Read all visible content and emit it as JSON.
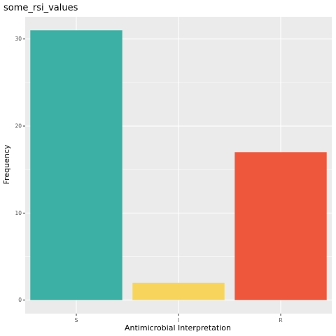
{
  "chart_data": {
    "type": "bar",
    "title": "some_rsi_values",
    "xlabel": "Antimicrobial Interpretation",
    "ylabel": "Frequency",
    "categories": [
      "S",
      "I",
      "R"
    ],
    "values": [
      31,
      2,
      17
    ],
    "colors": [
      "#3CB0A4",
      "#F7D55C",
      "#EE573C"
    ],
    "y_ticks": [
      0,
      10,
      20,
      30
    ],
    "ylim": [
      -1.55,
      32.55
    ],
    "grid": true,
    "legend": "none",
    "panel_background": "#EBEBEB",
    "grid_color": "#FFFFFF"
  }
}
